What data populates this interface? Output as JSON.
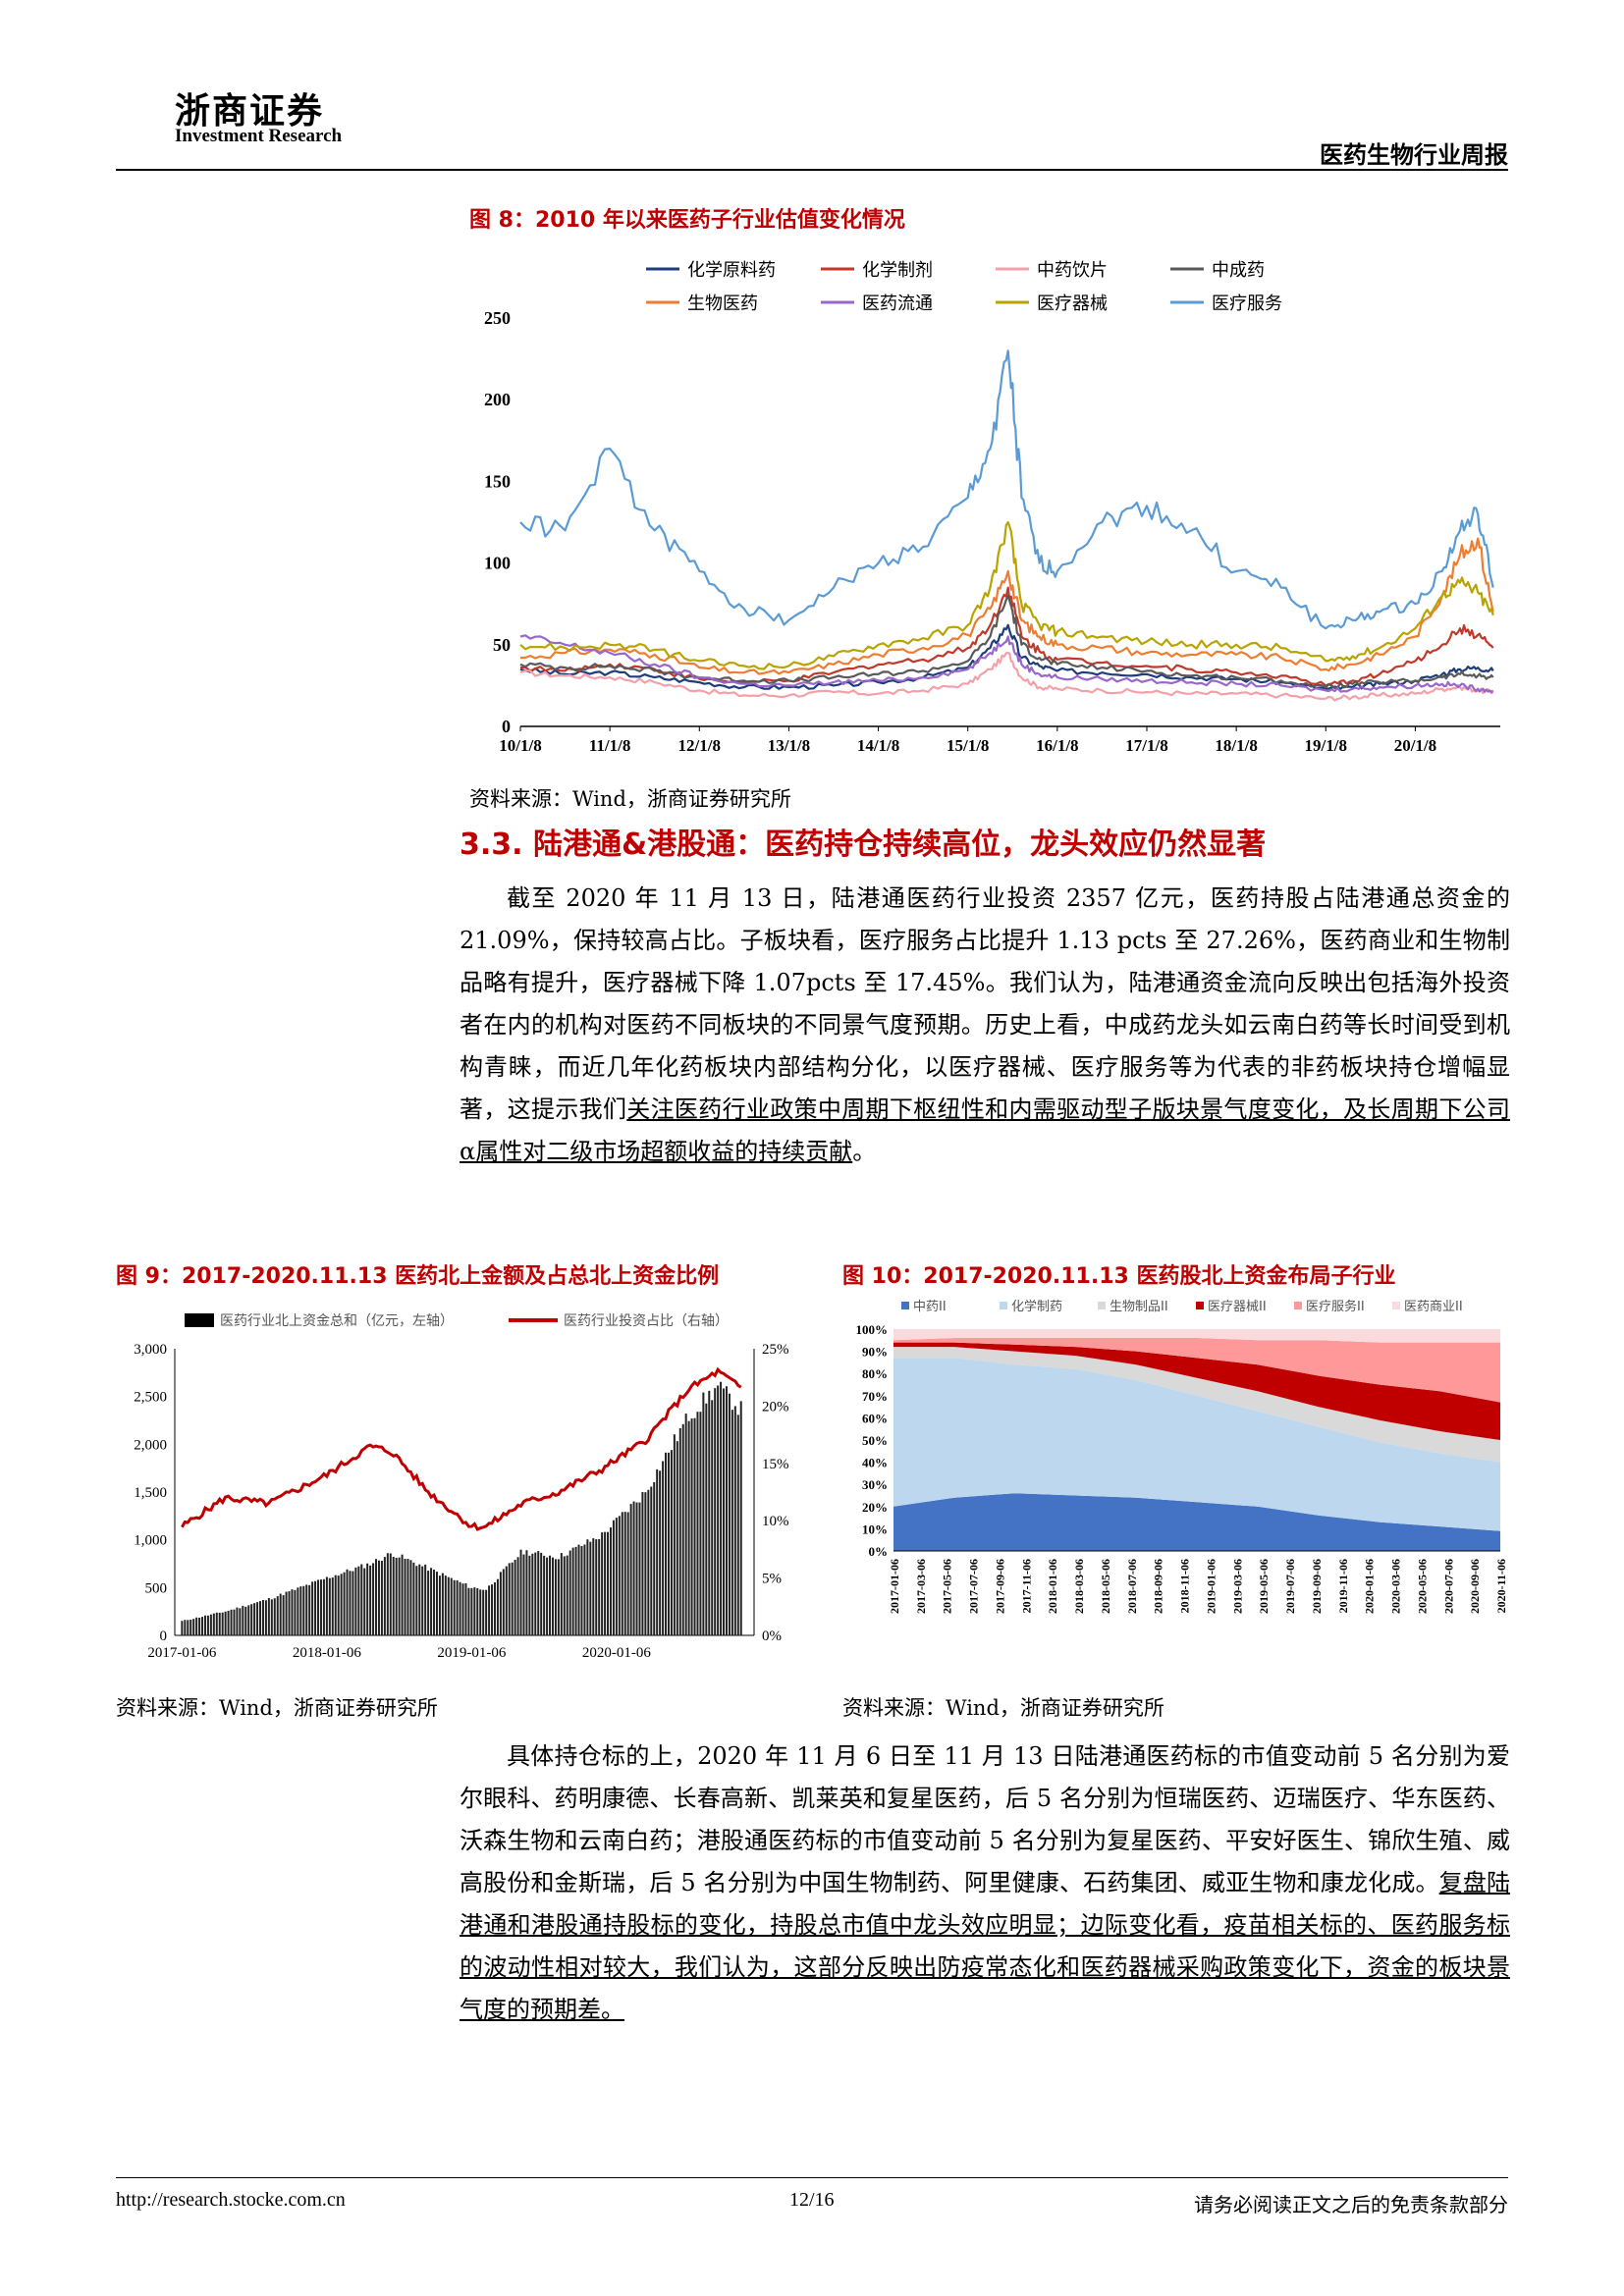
{
  "header": {
    "logo_cn": "浙商证券",
    "logo_en": "Investment Research",
    "report_title": "医药生物行业周报"
  },
  "figure8": {
    "title": "图 8：2010 年以来医药子行业估值变化情况",
    "source": "资料来源：Wind，浙商证券研究所",
    "chart_data": {
      "type": "line",
      "x_ticks": [
        "10/1/8",
        "11/1/8",
        "12/1/8",
        "13/1/8",
        "14/1/8",
        "15/1/8",
        "16/1/8",
        "17/1/8",
        "18/1/8",
        "19/1/8",
        "20/1/8"
      ],
      "ylim": [
        0,
        250
      ],
      "y_ticks": [
        0,
        50,
        100,
        150,
        200,
        250
      ],
      "legend_position": "top",
      "x": [
        2010.0,
        2010.5,
        2011.0,
        2011.5,
        2012.0,
        2012.5,
        2013.0,
        2013.5,
        2014.0,
        2014.5,
        2015.0,
        2015.25,
        2015.45,
        2015.6,
        2015.8,
        2016.0,
        2016.5,
        2017.0,
        2017.5,
        2018.0,
        2018.5,
        2019.0,
        2019.3,
        2019.6,
        2020.0,
        2020.3,
        2020.5,
        2020.7,
        2020.87
      ],
      "series": [
        {
          "name": "化学原料药",
          "color": "#1f3d7a",
          "values": [
            35,
            32,
            33,
            30,
            27,
            24,
            24,
            25,
            27,
            30,
            36,
            48,
            62,
            42,
            37,
            34,
            33,
            32,
            30,
            29,
            27,
            23,
            24,
            26,
            28,
            32,
            35,
            36,
            34
          ]
        },
        {
          "name": "化学制剂",
          "color": "#c0392b",
          "values": [
            36,
            34,
            38,
            35,
            29,
            27,
            28,
            33,
            38,
            41,
            48,
            62,
            85,
            55,
            46,
            41,
            39,
            37,
            35,
            33,
            31,
            25,
            28,
            32,
            40,
            50,
            60,
            56,
            48
          ]
        },
        {
          "name": "中药饮片",
          "color": "#f4a0a8",
          "values": [
            33,
            31,
            30,
            27,
            22,
            19,
            19,
            21,
            20,
            22,
            26,
            35,
            45,
            30,
            24,
            23,
            22,
            21,
            20,
            20,
            19,
            17,
            18,
            19,
            20,
            23,
            24,
            22,
            21
          ]
        },
        {
          "name": "中成药",
          "color": "#595959",
          "values": [
            38,
            36,
            37,
            34,
            30,
            28,
            28,
            30,
            32,
            34,
            40,
            55,
            80,
            50,
            42,
            38,
            36,
            34,
            31,
            30,
            28,
            24,
            26,
            27,
            28,
            30,
            32,
            31,
            30
          ]
        },
        {
          "name": "生物医药",
          "color": "#ed7d31",
          "values": [
            42,
            45,
            47,
            44,
            36,
            33,
            33,
            38,
            44,
            48,
            56,
            72,
            95,
            65,
            55,
            50,
            48,
            45,
            44,
            44,
            42,
            35,
            38,
            44,
            55,
            80,
            105,
            115,
            70
          ]
        },
        {
          "name": "医药流通",
          "color": "#9966cc",
          "values": [
            55,
            50,
            45,
            38,
            30,
            26,
            25,
            27,
            28,
            30,
            35,
            45,
            55,
            38,
            32,
            30,
            29,
            28,
            27,
            26,
            25,
            22,
            23,
            24,
            25,
            26,
            25,
            23,
            22
          ]
        },
        {
          "name": "医疗器械",
          "color": "#b8a400",
          "values": [
            50,
            48,
            50,
            47,
            40,
            37,
            37,
            43,
            50,
            54,
            62,
            85,
            125,
            75,
            62,
            58,
            55,
            52,
            50,
            50,
            48,
            40,
            43,
            48,
            60,
            80,
            88,
            82,
            68
          ]
        },
        {
          "name": "医疗服务",
          "color": "#5b9bd5",
          "values": [
            125,
            120,
            170,
            120,
            95,
            72,
            65,
            85,
            100,
            110,
            140,
            170,
            230,
            140,
            100,
            95,
            125,
            135,
            120,
            95,
            85,
            60,
            65,
            70,
            75,
            95,
            120,
            130,
            85
          ]
        }
      ]
    }
  },
  "section": {
    "heading": "3.3. 陆港通&港股通：医药持仓持续高位，龙头效应仍然显著",
    "para1": "截至 2020 年 11 月 13 日，陆港通医药行业投资 2357 亿元，医药持股占陆港通总资金的 21.09%，保持较高占比。子板块看，医疗服务占比提升 1.13 pcts 至 27.26%，医药商业和生物制品略有提升，医疗器械下降 1.07pcts 至 17.45%。我们认为，陆港通资金流向反映出包括海外投资者在内的机构对医药不同板块的不同景气度预期。历史上看，中成药龙头如云南白药等长时间受到机构青睐，而近几年化药板块内部结构分化，以医疗器械、医疗服务等为代表的非药板块持仓增幅显著，这提示我们",
    "para1_ul": "关注医药行业政策中周期下枢纽性和内需驱动型子版块景气度变化，及长周期下公司α属性对二级市场超额收益的持续贡献",
    "para1_end": "。",
    "para2": "具体持仓标的上，2020 年 11 月 6 日至 11 月 13 日陆港通医药标的市值变动前 5 名分别为爱尔眼科、药明康德、长春高新、凯莱英和复星医药，后 5 名分别为恒瑞医药、迈瑞医疗、华东医药、沃森生物和云南白药；港股通医药标的市值变动前 5 名分别为复星医药、平安好医生、锦欣生殖、威高股份和金斯瑞，后 5 名分别为中国生物制药、阿里健康、石药集团、威亚生物和康龙化成。",
    "para2_ul": "复盘陆港通和港股通持股标的变化，持股总市值中龙头效应明显；边际变化看，疫苗相关标的、医药服务标的波动性相对较大，我们认为，这部分反映出防疫常态化和医药器械采购政策变化下，资金的板块景气度的预期差。"
  },
  "figure9": {
    "title": "图 9：2017-2020.11.13 医药北上金额及占总北上资金比例",
    "source": "资料来源：Wind，浙商证券研究所",
    "chart_data": {
      "type": "bar",
      "legend": [
        "医药行业北上资金总和（亿元，左轴）",
        "医药行业投资占比（右轴）"
      ],
      "x_ticks": [
        "2017-01-06",
        "2018-01-06",
        "2019-01-06",
        "2020-01-06"
      ],
      "left_ylim": [
        0,
        3000
      ],
      "left_ticks": [
        "0",
        "500",
        "1,000",
        "1,500",
        "2,000",
        "2,500",
        "3,000"
      ],
      "right_ylim": [
        0,
        25
      ],
      "right_ticks": [
        "0%",
        "5%",
        "10%",
        "15%",
        "20%",
        "25%"
      ],
      "x": [
        2017.0,
        2017.3,
        2017.6,
        2018.0,
        2018.3,
        2018.45,
        2018.7,
        2019.0,
        2019.1,
        2019.35,
        2019.6,
        2019.9,
        2020.2,
        2020.5,
        2020.7,
        2020.87
      ],
      "bar_values": [
        150,
        250,
        380,
        600,
        750,
        860,
        700,
        500,
        480,
        880,
        820,
        1050,
        1500,
        2300,
        2600,
        2350
      ],
      "ratio_values": [
        9.5,
        12.0,
        11.5,
        14.0,
        16.5,
        16.0,
        12.5,
        9.5,
        9.5,
        11.5,
        12.5,
        14.5,
        17.0,
        21.5,
        23.0,
        21.5
      ]
    }
  },
  "figure10": {
    "title": "图 10：2017-2020.11.13 医药股北上资金布局子行业",
    "source": "资料来源：Wind，浙商证券研究所",
    "chart_data": {
      "type": "area",
      "stacked": true,
      "ylim": [
        0,
        100
      ],
      "y_ticks": [
        "0%",
        "10%",
        "20%",
        "30%",
        "40%",
        "50%",
        "60%",
        "70%",
        "80%",
        "90%",
        "100%"
      ],
      "x_ticks": [
        "2017-01-06",
        "2017-03-06",
        "2017-05-06",
        "2017-07-06",
        "2017-09-06",
        "2017-11-06",
        "2018-01-06",
        "2018-03-06",
        "2018-05-06",
        "2018-07-06",
        "2018-09-06",
        "2018-11-06",
        "2019-01-06",
        "2019-03-06",
        "2019-05-06",
        "2019-07-06",
        "2019-09-06",
        "2019-11-06",
        "2020-01-06",
        "2020-03-06",
        "2020-05-06",
        "2020-07-06",
        "2020-09-06",
        "2020-11-06"
      ],
      "x": [
        0,
        0.1,
        0.2,
        0.3,
        0.4,
        0.5,
        0.6,
        0.7,
        0.8,
        0.9,
        1.0
      ],
      "series": [
        {
          "name": "中药II",
          "color": "#4472c4",
          "values": [
            20,
            24,
            26,
            25,
            24,
            22,
            20,
            16,
            13,
            11,
            9
          ]
        },
        {
          "name": "化学制药",
          "color": "#bdd7ee",
          "values": [
            67,
            63,
            58,
            57,
            53,
            48,
            43,
            40,
            36,
            33,
            31
          ]
        },
        {
          "name": "生物制品II",
          "color": "#d9d9d9",
          "values": [
            5,
            5,
            6,
            6,
            7,
            8,
            9,
            9,
            10,
            10,
            10
          ]
        },
        {
          "name": "医疗器械II",
          "color": "#c00000",
          "values": [
            2,
            2,
            3,
            4,
            6,
            9,
            12,
            14,
            16,
            18,
            17
          ]
        },
        {
          "name": "医疗服务II",
          "color": "#ff9999",
          "values": [
            1,
            2,
            3,
            4,
            6,
            9,
            11,
            16,
            19,
            22,
            27
          ]
        },
        {
          "name": "医药商业II",
          "color": "#fadadd",
          "values": [
            5,
            4,
            4,
            4,
            4,
            4,
            5,
            5,
            6,
            6,
            6
          ]
        }
      ]
    }
  },
  "footer": {
    "url": "http://research.stocke.com.cn",
    "page": "12/16",
    "disclaimer": "请务必阅读正文之后的免责条款部分"
  }
}
